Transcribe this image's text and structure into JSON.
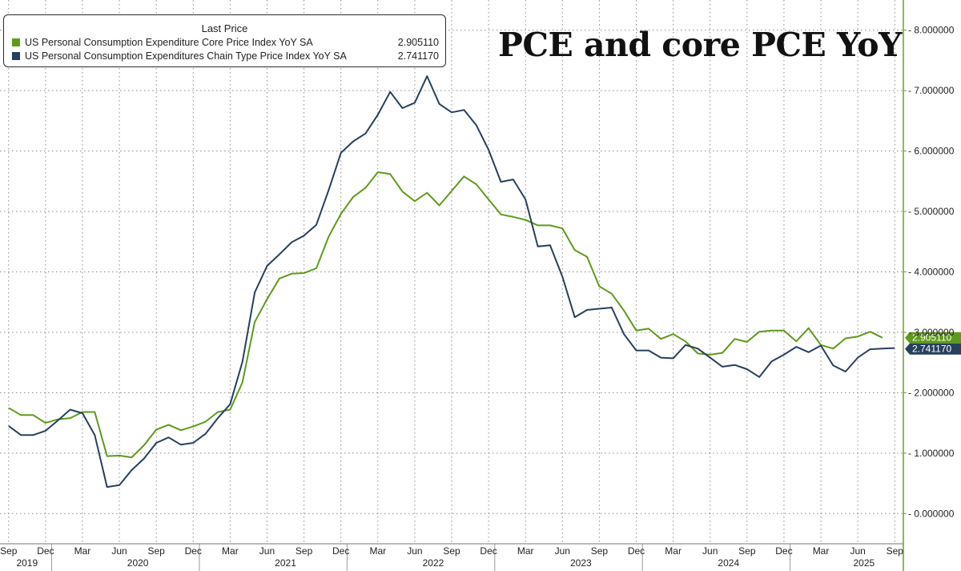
{
  "chart_data": {
    "type": "line",
    "title": "PCE and core PCE YoY",
    "legend": {
      "header": "Last Price",
      "position": "top-left"
    },
    "ylim": [
      -0.5,
      8.5
    ],
    "y_ticks": [
      0,
      1,
      2,
      3,
      4,
      5,
      6,
      7,
      8
    ],
    "y_tick_labels": [
      "0.000000",
      "1.000000",
      "2.000000",
      "3.000000",
      "4.000000",
      "5.000000",
      "6.000000",
      "7.000000",
      "8.000000"
    ],
    "x_tick_labels": [
      "Sep",
      "Dec",
      "Mar",
      "Jun",
      "Sep",
      "Dec",
      "Mar",
      "Jun",
      "Sep",
      "Dec",
      "Mar",
      "Jun",
      "Sep",
      "Dec",
      "Mar",
      "Jun",
      "Sep",
      "Dec",
      "Mar",
      "Jun",
      "Sep",
      "Dec",
      "Mar",
      "Jun",
      "Sep"
    ],
    "x_tick_months": [
      0,
      3,
      6,
      9,
      12,
      15,
      18,
      21,
      24,
      27,
      30,
      33,
      36,
      39,
      42,
      45,
      48,
      51,
      54,
      57,
      60,
      63,
      66,
      69,
      72
    ],
    "year_labels": [
      "2019",
      "2020",
      "2021",
      "2022",
      "2023",
      "2024",
      "2025"
    ],
    "year_label_months": [
      1.5,
      10.5,
      22.5,
      34.5,
      46.5,
      58.5,
      69.5
    ],
    "year_boundary_months": [
      3.5,
      15.5,
      27.5,
      39.5,
      51.5,
      63.5
    ],
    "x_range_months": [
      -0.7,
      72.7
    ],
    "start_month": "Sep 2019",
    "series": [
      {
        "name": "US Personal Consumption Expenditure Core Price Index YoY SA",
        "last_value": "2.905110",
        "color": "#5f9a1b",
        "values": [
          1.75,
          1.63,
          1.63,
          1.5,
          1.56,
          1.58,
          1.68,
          1.68,
          0.95,
          0.96,
          0.93,
          1.13,
          1.39,
          1.47,
          1.38,
          1.44,
          1.52,
          1.68,
          1.72,
          2.17,
          3.17,
          3.55,
          3.89,
          3.97,
          3.98,
          4.06,
          4.58,
          4.96,
          5.24,
          5.39,
          5.65,
          5.62,
          5.33,
          5.17,
          5.31,
          5.1,
          5.34,
          5.58,
          5.45,
          5.2,
          4.95,
          4.91,
          4.86,
          4.77,
          4.77,
          4.72,
          4.36,
          4.25,
          3.76,
          3.64,
          3.36,
          3.03,
          3.06,
          2.89,
          2.97,
          2.85,
          2.65,
          2.63,
          2.66,
          2.89,
          2.84,
          3.01,
          3.03,
          3.03,
          2.85,
          3.07,
          2.79,
          2.73,
          2.9,
          2.93,
          3.01,
          2.91
        ]
      },
      {
        "name": "US Personal Consumption Expenditures Chain Type Price Index YoY SA",
        "last_value": "2.741170",
        "color": "#27405c",
        "values": [
          1.45,
          1.3,
          1.3,
          1.37,
          1.54,
          1.72,
          1.66,
          1.3,
          0.44,
          0.47,
          0.72,
          0.91,
          1.17,
          1.26,
          1.14,
          1.17,
          1.32,
          1.58,
          1.81,
          2.51,
          3.66,
          4.1,
          4.29,
          4.49,
          4.6,
          4.78,
          5.35,
          5.97,
          6.16,
          6.29,
          6.6,
          6.98,
          6.71,
          6.8,
          7.24,
          6.78,
          6.64,
          6.68,
          6.43,
          6.02,
          5.49,
          5.53,
          5.2,
          4.42,
          4.44,
          3.92,
          3.25,
          3.37,
          3.39,
          3.41,
          2.97,
          2.7,
          2.7,
          2.58,
          2.57,
          2.79,
          2.73,
          2.58,
          2.43,
          2.46,
          2.39,
          2.26,
          2.52,
          2.63,
          2.76,
          2.67,
          2.78,
          2.45,
          2.35,
          2.58,
          2.72,
          2.73,
          2.74
        ]
      }
    ]
  }
}
